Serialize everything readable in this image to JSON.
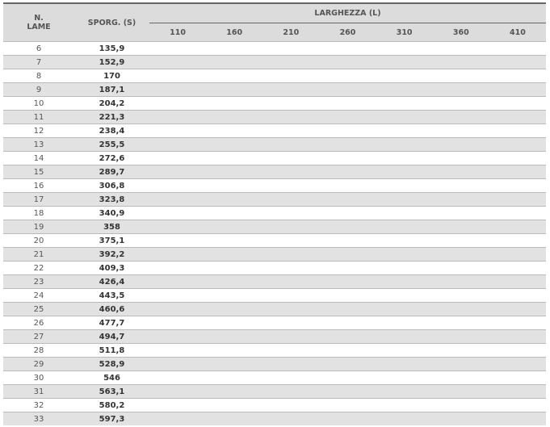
{
  "headers": {
    "n_lame": "N.\nLAME",
    "n_lame_1": "N.",
    "n_lame_2": "LAME",
    "sporg": "SPORG. (S)",
    "larghezza": "LARGHEZZA (L)",
    "widths": [
      "110",
      "160",
      "210",
      "260",
      "310",
      "360",
      "410"
    ]
  },
  "rows": [
    {
      "n": "6",
      "s": "135,9"
    },
    {
      "n": "7",
      "s": "152,9"
    },
    {
      "n": "8",
      "s": "170"
    },
    {
      "n": "9",
      "s": "187,1"
    },
    {
      "n": "10",
      "s": "204,2"
    },
    {
      "n": "11",
      "s": "221,3"
    },
    {
      "n": "12",
      "s": "238,4"
    },
    {
      "n": "13",
      "s": "255,5"
    },
    {
      "n": "14",
      "s": "272,6"
    },
    {
      "n": "15",
      "s": "289,7"
    },
    {
      "n": "16",
      "s": "306,8"
    },
    {
      "n": "17",
      "s": "323,8"
    },
    {
      "n": "18",
      "s": "340,9"
    },
    {
      "n": "19",
      "s": "358"
    },
    {
      "n": "20",
      "s": "375,1"
    },
    {
      "n": "21",
      "s": "392,2"
    },
    {
      "n": "22",
      "s": "409,3"
    },
    {
      "n": "23",
      "s": "426,4"
    },
    {
      "n": "24",
      "s": "443,5"
    },
    {
      "n": "25",
      "s": "460,6"
    },
    {
      "n": "26",
      "s": "477,7"
    },
    {
      "n": "27",
      "s": "494,7"
    },
    {
      "n": "28",
      "s": "511,8"
    },
    {
      "n": "29",
      "s": "528,9"
    },
    {
      "n": "30",
      "s": "546"
    },
    {
      "n": "31",
      "s": "563,1"
    },
    {
      "n": "32",
      "s": "580,2"
    },
    {
      "n": "33",
      "s": "597,3"
    }
  ]
}
